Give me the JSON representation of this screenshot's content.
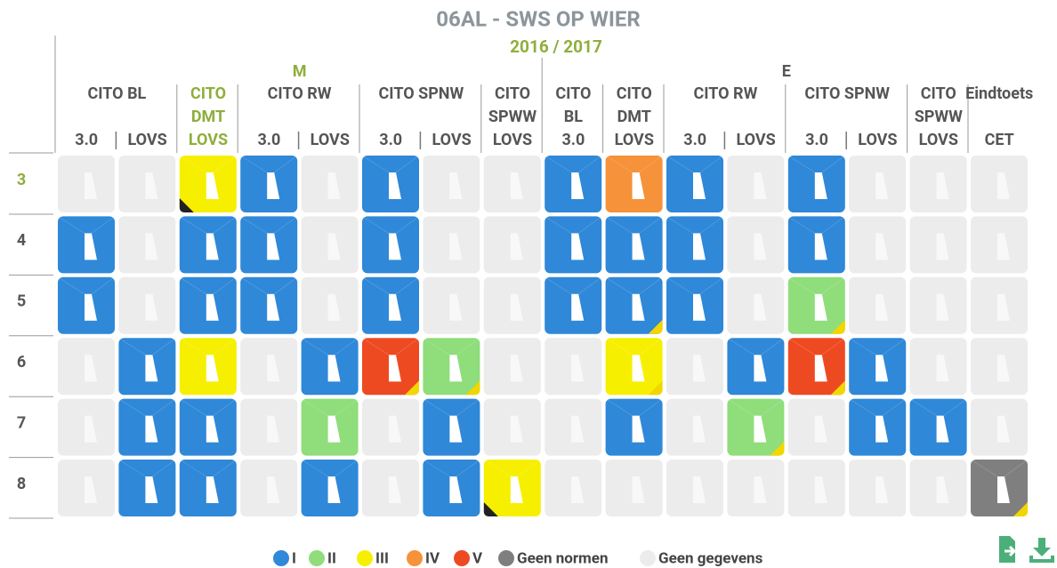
{
  "title": "06AL - SWS OP WIER",
  "subtitle": "2016 / 2017",
  "groups": [
    {
      "label": "M",
      "tests": [
        {
          "name": [
            "CITO BL"
          ],
          "subs": [
            "3.0",
            "LOVS"
          ]
        },
        {
          "name": [
            "CITO",
            "DMT"
          ],
          "subs": [
            "LOVS"
          ],
          "highlight": true
        },
        {
          "name": [
            "CITO RW"
          ],
          "subs": [
            "3.0",
            "LOVS"
          ]
        },
        {
          "name": [
            "CITO SPNW"
          ],
          "subs": [
            "3.0",
            "LOVS"
          ]
        },
        {
          "name": [
            "CITO",
            "SPWW"
          ],
          "subs": [
            "LOVS"
          ]
        }
      ]
    },
    {
      "label": "E",
      "tests": [
        {
          "name": [
            "CITO",
            "BL"
          ],
          "subs": [
            "3.0"
          ]
        },
        {
          "name": [
            "CITO",
            "DMT"
          ],
          "subs": [
            "LOVS"
          ]
        },
        {
          "name": [
            "CITO RW"
          ],
          "subs": [
            "3.0",
            "LOVS"
          ]
        },
        {
          "name": [
            "CITO SPNW"
          ],
          "subs": [
            "3.0",
            "LOVS"
          ]
        },
        {
          "name": [
            "CITO",
            "SPWW"
          ],
          "subs": [
            "LOVS"
          ]
        },
        {
          "name": [
            "Eindtoets"
          ],
          "subs": [
            "CET"
          ]
        }
      ]
    }
  ],
  "legend": [
    {
      "label": "I",
      "color": "#2f88d8"
    },
    {
      "label": "II",
      "color": "#8fdd7b"
    },
    {
      "label": "III",
      "color": "#f7ef00"
    },
    {
      "label": "IV",
      "color": "#f6923a"
    },
    {
      "label": "V",
      "color": "#ee4a22"
    },
    {
      "label": "Geen normen",
      "color": "#7f7f7f"
    },
    {
      "label": "Geen gegevens",
      "color": "#ececec"
    }
  ],
  "rows": [
    {
      "label": "3",
      "highlight": true,
      "cells": [
        {
          "level": "Geen gegevens"
        },
        {
          "level": "Geen gegevens"
        },
        {
          "level": "III",
          "flag": "black"
        },
        {
          "level": "I"
        },
        {
          "level": "Geen gegevens"
        },
        {
          "level": "I"
        },
        {
          "level": "Geen gegevens"
        },
        {
          "level": "Geen gegevens"
        },
        {
          "level": "I"
        },
        {
          "level": "IV"
        },
        {
          "level": "I"
        },
        {
          "level": "Geen gegevens"
        },
        {
          "level": "I"
        },
        {
          "level": "Geen gegevens"
        },
        {
          "level": "Geen gegevens"
        },
        {
          "level": "Geen gegevens"
        }
      ]
    },
    {
      "label": "4",
      "cells": [
        {
          "level": "I"
        },
        {
          "level": "Geen gegevens"
        },
        {
          "level": "I"
        },
        {
          "level": "I"
        },
        {
          "level": "Geen gegevens"
        },
        {
          "level": "I"
        },
        {
          "level": "Geen gegevens"
        },
        {
          "level": "Geen gegevens"
        },
        {
          "level": "I"
        },
        {
          "level": "I"
        },
        {
          "level": "I"
        },
        {
          "level": "Geen gegevens"
        },
        {
          "level": "I"
        },
        {
          "level": "Geen gegevens"
        },
        {
          "level": "Geen gegevens"
        },
        {
          "level": "Geen gegevens"
        }
      ]
    },
    {
      "label": "5",
      "cells": [
        {
          "level": "I"
        },
        {
          "level": "Geen gegevens"
        },
        {
          "level": "I"
        },
        {
          "level": "I"
        },
        {
          "level": "Geen gegevens"
        },
        {
          "level": "I"
        },
        {
          "level": "Geen gegevens"
        },
        {
          "level": "Geen gegevens"
        },
        {
          "level": "I"
        },
        {
          "level": "I",
          "flag": "yellow"
        },
        {
          "level": "I"
        },
        {
          "level": "Geen gegevens"
        },
        {
          "level": "II",
          "flag": "yellow"
        },
        {
          "level": "Geen gegevens"
        },
        {
          "level": "Geen gegevens"
        },
        {
          "level": "Geen gegevens"
        }
      ]
    },
    {
      "label": "6",
      "cells": [
        {
          "level": "Geen gegevens"
        },
        {
          "level": "I"
        },
        {
          "level": "III"
        },
        {
          "level": "Geen gegevens"
        },
        {
          "level": "I"
        },
        {
          "level": "V",
          "flag": "yellow"
        },
        {
          "level": "II",
          "flag": "yellow"
        },
        {
          "level": "Geen gegevens"
        },
        {
          "level": "Geen gegevens"
        },
        {
          "level": "III",
          "flag": "yellow"
        },
        {
          "level": "Geen gegevens"
        },
        {
          "level": "I"
        },
        {
          "level": "V",
          "flag": "yellow"
        },
        {
          "level": "I"
        },
        {
          "level": "Geen gegevens"
        },
        {
          "level": "Geen gegevens"
        }
      ]
    },
    {
      "label": "7",
      "cells": [
        {
          "level": "Geen gegevens"
        },
        {
          "level": "I"
        },
        {
          "level": "I"
        },
        {
          "level": "Geen gegevens"
        },
        {
          "level": "II"
        },
        {
          "level": "Geen gegevens"
        },
        {
          "level": "I"
        },
        {
          "level": "Geen gegevens"
        },
        {
          "level": "Geen gegevens"
        },
        {
          "level": "I"
        },
        {
          "level": "Geen gegevens"
        },
        {
          "level": "II",
          "flag": "yellow"
        },
        {
          "level": "Geen gegevens"
        },
        {
          "level": "I"
        },
        {
          "level": "I"
        },
        {
          "level": "Geen gegevens"
        }
      ]
    },
    {
      "label": "8",
      "cells": [
        {
          "level": "Geen gegevens"
        },
        {
          "level": "I"
        },
        {
          "level": "I"
        },
        {
          "level": "Geen gegevens"
        },
        {
          "level": "I"
        },
        {
          "level": "Geen gegevens"
        },
        {
          "level": "I"
        },
        {
          "level": "III",
          "flag": "black"
        },
        {
          "level": "Geen gegevens"
        },
        {
          "level": "Geen gegevens"
        },
        {
          "level": "Geen gegevens"
        },
        {
          "level": "Geen gegevens"
        },
        {
          "level": "Geen gegevens"
        },
        {
          "level": "Geen gegevens"
        },
        {
          "level": "Geen gegevens"
        },
        {
          "level": "Geen normen",
          "flag": "yellow"
        }
      ]
    }
  ]
}
